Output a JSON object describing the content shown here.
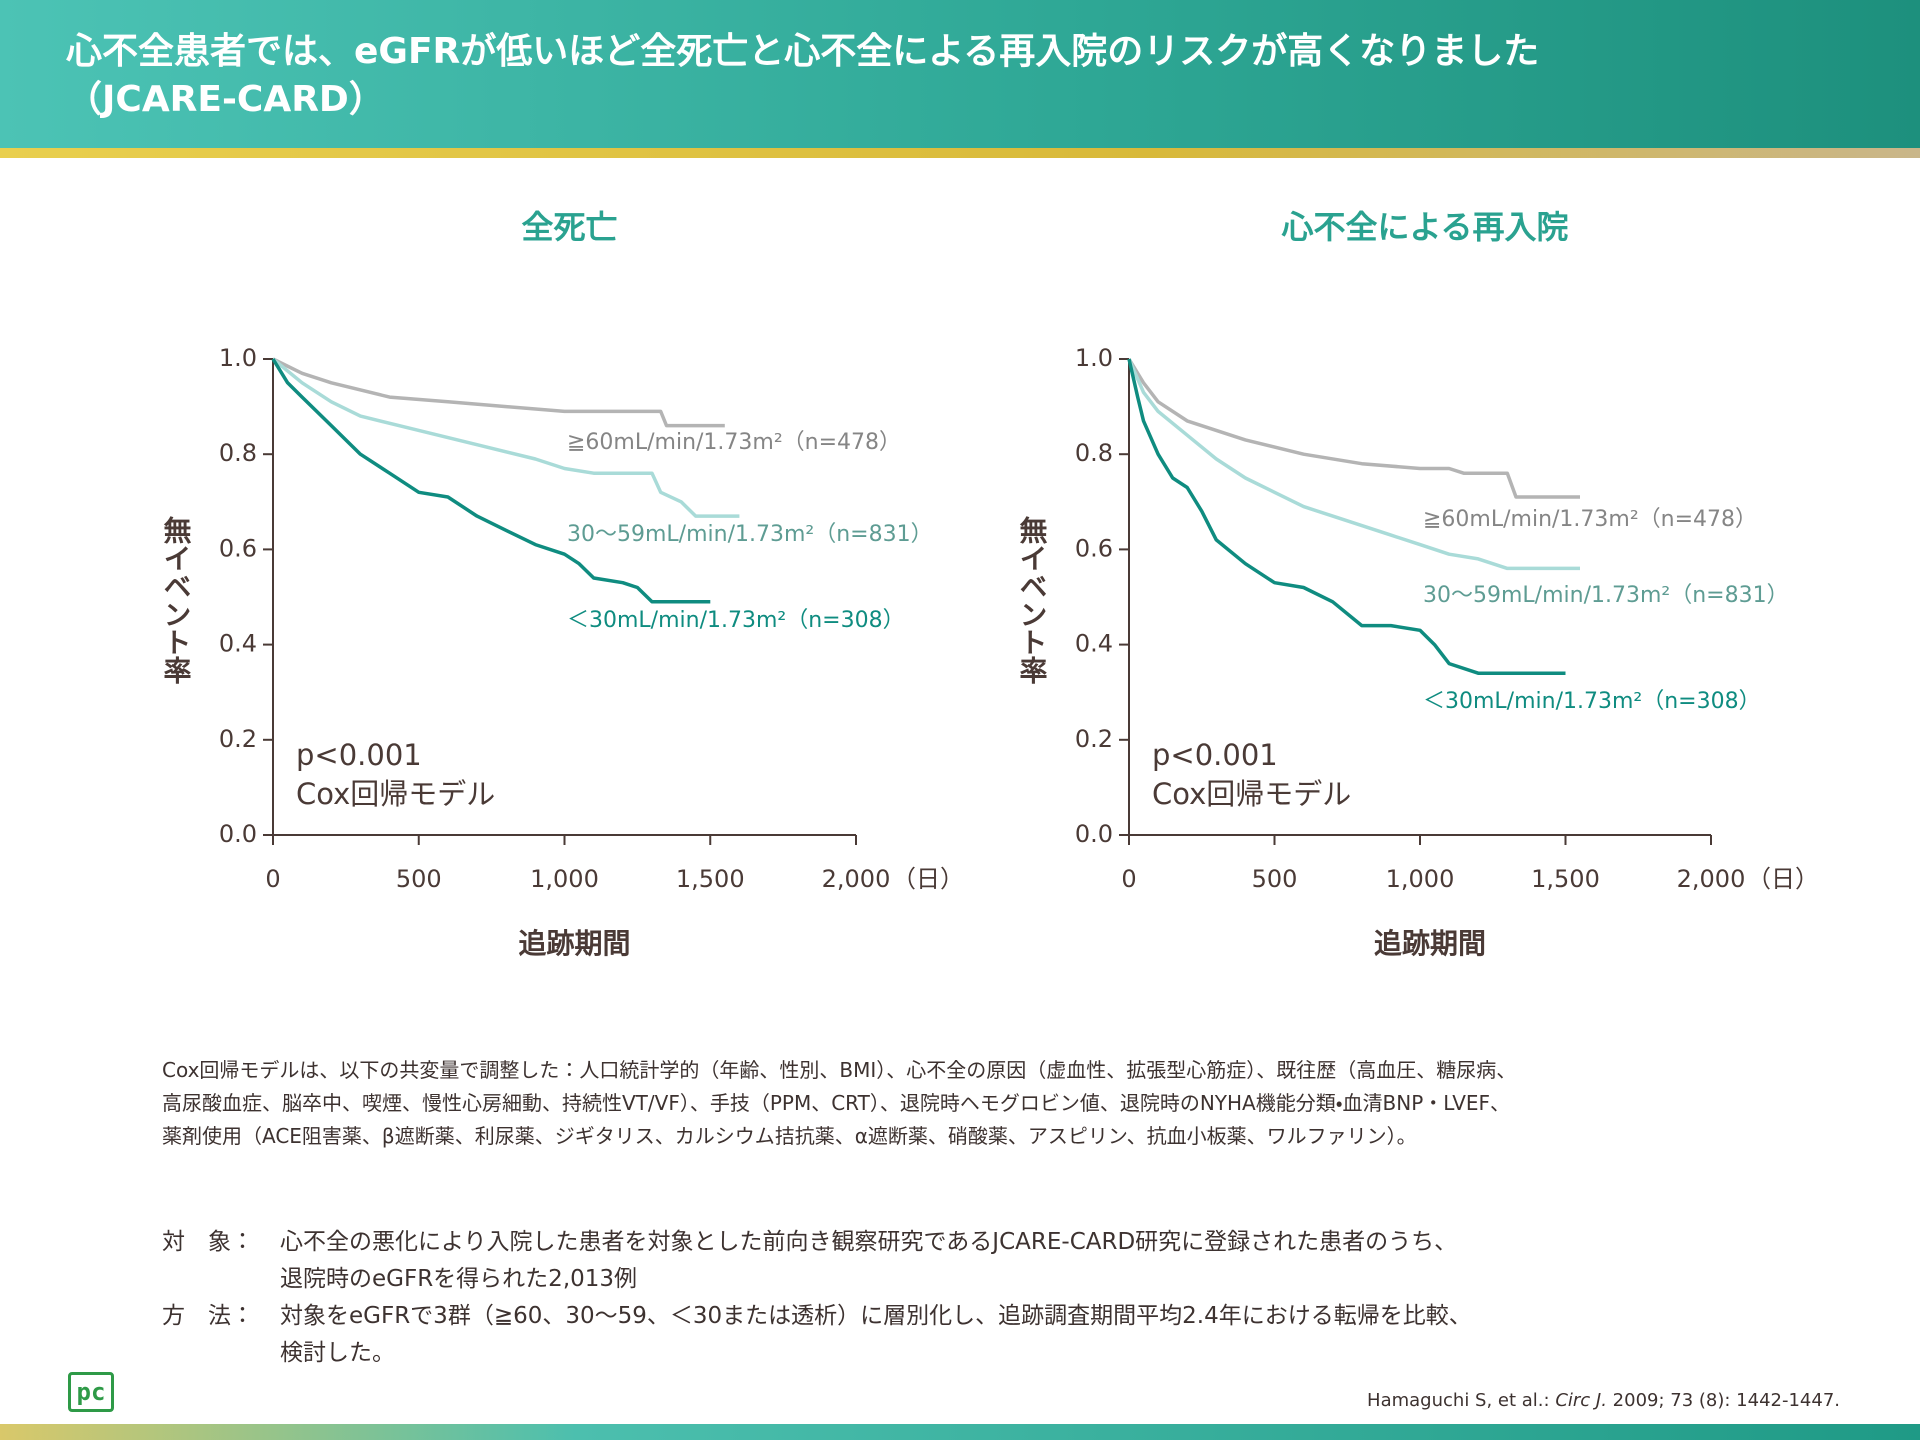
{
  "header": {
    "title": [
      "心不全患者では、eGFRが低いほど全死亡と心不全による再入院のリスクが高くなりました",
      "（JCARE-CARD）"
    ]
  },
  "chart_data": [
    {
      "type": "line",
      "title": "全死亡",
      "xlabel": "追跡期間",
      "x_unit": "（日）",
      "ylabel": "無イベント率",
      "annotations": [
        "p<0.001",
        "Cox回帰モデル"
      ],
      "xlim": [
        0,
        2000
      ],
      "xticks": [
        0,
        500,
        {
          "value": 1000,
          "label": "1,000"
        },
        {
          "value": 1500,
          "label": "1,500"
        },
        {
          "value": 2000,
          "label": "2,000"
        }
      ],
      "ylim": [
        0,
        1
      ],
      "yticks": [
        {
          "value": 0,
          "label": "0.0"
        },
        0.2,
        0.4,
        0.6,
        0.8,
        {
          "value": 1,
          "label": "1.0"
        }
      ],
      "series": [
        {
          "name": "≧60mL/min/1.73m²（n=478）",
          "color": "#b4b4b4",
          "label_color": "#858585",
          "x": [
            0,
            100,
            200,
            400,
            600,
            800,
            1000,
            1200,
            1330,
            1350,
            1550
          ],
          "values": [
            1,
            0.97,
            0.95,
            0.92,
            0.91,
            0.9,
            0.89,
            0.89,
            0.89,
            0.86,
            0.86
          ]
        },
        {
          "name": "30～59mL/min/1.73m²（n=831）",
          "color": "#a9dbd8",
          "label_color": "#5e9c93",
          "x": [
            0,
            100,
            200,
            300,
            500,
            700,
            900,
            1000,
            1100,
            1300,
            1330,
            1400,
            1450,
            1600
          ],
          "values": [
            1,
            0.95,
            0.91,
            0.88,
            0.85,
            0.82,
            0.79,
            0.77,
            0.76,
            0.76,
            0.72,
            0.7,
            0.67,
            0.67
          ]
        },
        {
          "name": "＜30mL/min/1.73m²（n=308）",
          "color": "#0f8c80",
          "label_color": "#0f8c80",
          "x": [
            0,
            50,
            100,
            200,
            300,
            400,
            500,
            600,
            700,
            800,
            900,
            1000,
            1050,
            1100,
            1200,
            1250,
            1300,
            1500
          ],
          "values": [
            1,
            0.95,
            0.92,
            0.86,
            0.8,
            0.76,
            0.72,
            0.71,
            0.67,
            0.64,
            0.61,
            0.59,
            0.57,
            0.54,
            0.53,
            0.52,
            0.49,
            0.49
          ]
        }
      ]
    },
    {
      "type": "line",
      "title": "心不全による再入院",
      "xlabel": "追跡期間",
      "x_unit": "（日）",
      "ylabel": "無イベント率",
      "annotations": [
        "p<0.001",
        "Cox回帰モデル"
      ],
      "xlim": [
        0,
        2000
      ],
      "xticks": [
        0,
        500,
        {
          "value": 1000,
          "label": "1,000"
        },
        {
          "value": 1500,
          "label": "1,500"
        },
        {
          "value": 2000,
          "label": "2,000"
        }
      ],
      "ylim": [
        0,
        1
      ],
      "yticks": [
        {
          "value": 0,
          "label": "0.0"
        },
        0.2,
        0.4,
        0.6,
        0.8,
        {
          "value": 1,
          "label": "1.0"
        }
      ],
      "series": [
        {
          "name": "≧60mL/min/1.73m²（n=478）",
          "color": "#b4b4b4",
          "label_color": "#858585",
          "x": [
            0,
            50,
            100,
            200,
            300,
            400,
            600,
            800,
            1000,
            1100,
            1150,
            1300,
            1330,
            1550
          ],
          "values": [
            1,
            0.95,
            0.91,
            0.87,
            0.85,
            0.83,
            0.8,
            0.78,
            0.77,
            0.77,
            0.76,
            0.76,
            0.71,
            0.71
          ]
        },
        {
          "name": "30～59mL/min/1.73m²（n=831）",
          "color": "#a9dbd8",
          "label_color": "#5e9c93",
          "x": [
            0,
            50,
            100,
            200,
            300,
            400,
            500,
            600,
            700,
            800,
            900,
            1000,
            1100,
            1200,
            1300,
            1550
          ],
          "values": [
            1,
            0.93,
            0.89,
            0.84,
            0.79,
            0.75,
            0.72,
            0.69,
            0.67,
            0.65,
            0.63,
            0.61,
            0.59,
            0.58,
            0.56,
            0.56
          ]
        },
        {
          "name": "＜30mL/min/1.73m²（n=308）",
          "color": "#0f8c80",
          "label_color": "#0f8c80",
          "x": [
            0,
            30,
            50,
            100,
            150,
            200,
            250,
            300,
            400,
            500,
            600,
            700,
            800,
            900,
            1000,
            1050,
            1100,
            1200,
            1500
          ],
          "values": [
            1,
            0.92,
            0.87,
            0.8,
            0.75,
            0.73,
            0.68,
            0.62,
            0.57,
            0.53,
            0.52,
            0.49,
            0.44,
            0.44,
            0.43,
            0.4,
            0.36,
            0.34,
            0.34
          ]
        }
      ]
    }
  ],
  "notes": [
    "Cox回帰モデルは、以下の共変量で調整した：人口統計学的（年齢、性別、BMI）、心不全の原因（虚血性、拡張型心筋症）、既往歴（高血圧、糖尿病、",
    "高尿酸血症、脳卒中、喫煙、慢性心房細動、持続性VT/VF）、手技（PPM、CRT）、退院時ヘモグロビン値、退院時のNYHA機能分類・血清BNP・LVEF、",
    "薬剤使用（ACE阻害薬、β遮断薬、利尿薬、ジギタリス、カルシウム拮抗薬、α遮断薬、硝酸薬、アスピリン、抗血小板薬、ワルファリン）。"
  ],
  "study": [
    {
      "term": "対　象：",
      "lines": [
        "心不全の悪化により入院した患者を対象とした前向き観察研究であるJCARE-CARD研究に登録された患者のうち、",
        "退院時のeGFRを得られた2,013例"
      ]
    },
    {
      "term": "方　法：",
      "lines": [
        "対象をeGFRで3群（≧60、30～59、＜30または透析）に層別化し、追跡調査期間平均2.4年における転帰を比較、",
        "検討した。"
      ]
    }
  ],
  "citation": {
    "authors": "Hamaguchi S, et al.: ",
    "journal": "Circ J.",
    "details": " 2009; 73 (8): 1442-1447."
  },
  "logo": "pc"
}
